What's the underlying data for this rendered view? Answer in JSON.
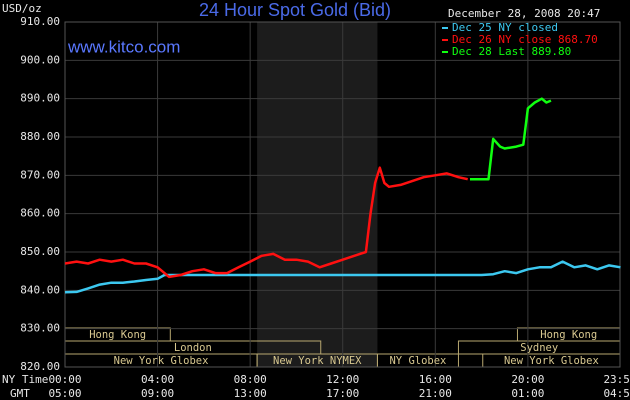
{
  "chart_data": {
    "type": "line",
    "title": "24 Hour Spot Gold (Bid)",
    "site": "www.kitco.com",
    "timestamp": "December 28, 2008 20:47",
    "y_unit": "USD/oz",
    "x_row_labels": [
      "NY Time",
      "GMT"
    ],
    "xlim": [
      0,
      23.98
    ],
    "xticks": [
      {
        "value": 0,
        "label": "00:00"
      },
      {
        "value": 4,
        "label": "04:00"
      },
      {
        "value": 8,
        "label": "08:00"
      },
      {
        "value": 12,
        "label": "12:00"
      },
      {
        "value": 16,
        "label": "16:00"
      },
      {
        "value": 20,
        "label": "20:00"
      },
      {
        "value": 23.98,
        "label": "23:59"
      }
    ],
    "gmt_tick_labels": [
      "05:00",
      "09:00",
      "13:00",
      "17:00",
      "21:00",
      "01:00",
      "04:59"
    ],
    "ylim": [
      820,
      910
    ],
    "yticks": [
      {
        "value": 820,
        "label": "820.00"
      },
      {
        "value": 830,
        "label": "830.00"
      },
      {
        "value": 840,
        "label": "840.00"
      },
      {
        "value": 850,
        "label": "850.00"
      },
      {
        "value": 860,
        "label": "860.00"
      },
      {
        "value": 870,
        "label": "870.00"
      },
      {
        "value": 880,
        "label": "880.00"
      },
      {
        "value": 890,
        "label": "890.00"
      },
      {
        "value": 900,
        "label": "900.00"
      },
      {
        "value": 910,
        "label": "910.00"
      }
    ],
    "grid": true,
    "series": [
      {
        "name": "Dec 25 NY closed",
        "color": "#3cc8f0",
        "x": [
          0,
          0.5,
          1,
          1.5,
          2,
          2.5,
          3,
          3.5,
          4,
          4.3,
          6,
          8,
          10,
          12,
          14,
          16,
          18,
          18.5,
          19,
          19.5,
          20,
          20.5,
          21,
          21.5,
          22,
          22.5,
          23,
          23.5,
          24
        ],
        "values": [
          839.5,
          839.6,
          840.5,
          841.5,
          842,
          842,
          842.3,
          842.7,
          843,
          844,
          844,
          844,
          844,
          844,
          844,
          844,
          844,
          844.2,
          845,
          844.5,
          845.5,
          846,
          846,
          847.5,
          846,
          846.5,
          845.5,
          846.5,
          846
        ]
      },
      {
        "name": "Dec 26 NY close 868.70",
        "color": "#ff1010",
        "x": [
          0,
          0.5,
          1,
          1.5,
          2,
          2.5,
          3,
          3.5,
          4,
          4.5,
          5,
          5.5,
          6,
          6.5,
          7,
          7.5,
          8,
          8.5,
          9,
          9.5,
          10,
          10.5,
          11,
          11.5,
          12,
          12.5,
          13,
          13.2,
          13.4,
          13.6,
          13.8,
          14,
          14.5,
          15,
          15.5,
          16,
          16.5,
          17,
          17.4
        ],
        "values": [
          847,
          847.5,
          847,
          848,
          847.5,
          848,
          847,
          847,
          846,
          843.5,
          844,
          845,
          845.5,
          844.5,
          844.5,
          846,
          847.5,
          849,
          849.5,
          848,
          848,
          847.5,
          846,
          847,
          848,
          849,
          850,
          860,
          868,
          872,
          868,
          867,
          867.5,
          868.5,
          869.5,
          870,
          870.5,
          869.5,
          869
        ]
      },
      {
        "name": "Dec 28 Last 889.80",
        "color": "#10ff10",
        "x": [
          17.5,
          18,
          18.3,
          18.5,
          18.8,
          19,
          19.5,
          19.8,
          20,
          20.3,
          20.6,
          20.8,
          21
        ],
        "values": [
          869,
          869,
          869,
          879.5,
          877.5,
          877,
          877.5,
          878,
          887.5,
          889,
          890,
          889,
          889.5
        ]
      }
    ],
    "sessions": [
      {
        "name": "Hong Kong",
        "start": 0,
        "end": 4.55,
        "row": 0
      },
      {
        "name": "Hong Kong",
        "start": 19.55,
        "end": 23.98,
        "row": 0
      },
      {
        "name": "London",
        "start": 0,
        "end": 11.05,
        "row": 1
      },
      {
        "name": "Sydney",
        "start": 17,
        "end": 23.98,
        "row": 1
      },
      {
        "name": "New York Globex",
        "start": 0,
        "end": 8.3,
        "row": 2
      },
      {
        "name": "New York NYMEX",
        "start": 8.3,
        "end": 13.5,
        "row": 2,
        "shaded": true
      },
      {
        "name": "NY Globex",
        "start": 13.5,
        "end": 17,
        "row": 2
      },
      {
        "name": "New York Globex",
        "start": 18.05,
        "end": 23.98,
        "row": 2
      }
    ]
  }
}
